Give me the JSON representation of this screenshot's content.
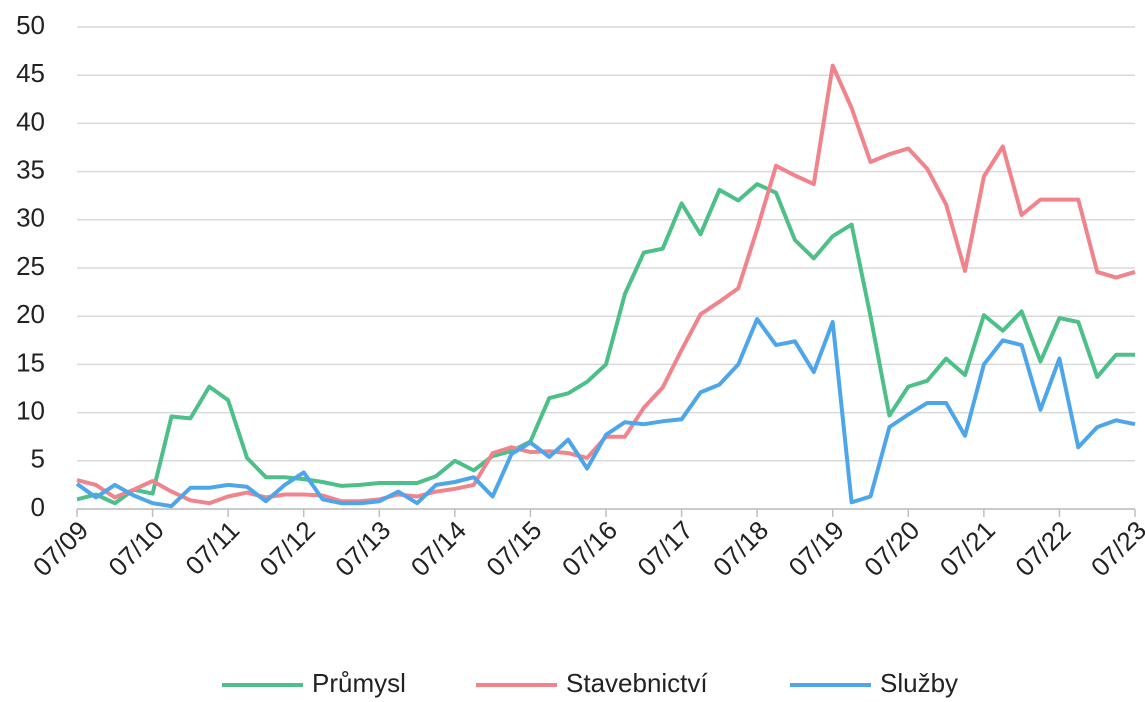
{
  "chart_data": {
    "type": "line",
    "categories": [
      "07/09",
      null,
      null,
      null,
      "07/10",
      null,
      null,
      null,
      "07/11",
      null,
      null,
      null,
      "07/12",
      null,
      null,
      null,
      "07/13",
      null,
      null,
      null,
      "07/14",
      null,
      null,
      null,
      "07/15",
      null,
      null,
      null,
      "07/16",
      null,
      null,
      null,
      "07/17",
      null,
      null,
      null,
      "07/18",
      null,
      null,
      null,
      "07/19",
      null,
      null,
      null,
      "07/20",
      null,
      null,
      null,
      "07/21",
      null,
      null,
      null,
      "07/22",
      null,
      null,
      null,
      "07/23"
    ],
    "series": [
      {
        "name": "Průmysl",
        "color": "#4dbf88",
        "values": [
          1.0,
          1.5,
          0.6,
          2.0,
          1.6,
          9.6,
          9.4,
          12.7,
          11.3,
          5.3,
          3.3,
          3.3,
          3.1,
          2.8,
          2.4,
          2.5,
          2.7,
          2.7,
          2.7,
          3.4,
          5.0,
          4.0,
          5.5,
          6.0,
          7.0,
          11.5,
          12.0,
          13.2,
          15.0,
          22.3,
          26.6,
          27.0,
          31.7,
          28.5,
          33.1,
          32.0,
          33.7,
          32.8,
          27.9,
          26.0,
          28.3,
          29.5,
          20.0,
          9.7,
          12.7,
          13.3,
          15.6,
          13.9,
          20.1,
          18.5,
          20.5,
          15.3,
          19.8,
          19.4,
          13.7,
          16.0,
          16.0
        ]
      },
      {
        "name": "Stavebnictví",
        "color": "#f0838b",
        "values": [
          3.0,
          2.5,
          1.2,
          2.0,
          2.9,
          1.8,
          0.9,
          0.6,
          1.3,
          1.7,
          1.2,
          1.5,
          1.5,
          1.4,
          0.8,
          0.8,
          1.0,
          1.5,
          1.3,
          1.8,
          2.1,
          2.5,
          5.8,
          6.4,
          5.9,
          6.0,
          5.8,
          5.3,
          7.5,
          7.5,
          10.5,
          12.6,
          16.5,
          20.2,
          21.5,
          22.9,
          29.0,
          35.6,
          34.6,
          33.7,
          46.0,
          41.6,
          36.0,
          36.8,
          37.4,
          35.3,
          31.6,
          24.7,
          34.5,
          37.6,
          30.5,
          32.1,
          32.1,
          32.1,
          24.6,
          24.0,
          24.6
        ]
      },
      {
        "name": "Služby",
        "color": "#4ea6ea",
        "values": [
          2.6,
          1.2,
          2.5,
          1.4,
          0.6,
          0.3,
          2.2,
          2.2,
          2.5,
          2.3,
          0.8,
          2.5,
          3.8,
          1.0,
          0.6,
          0.6,
          0.8,
          1.8,
          0.6,
          2.5,
          2.8,
          3.3,
          1.3,
          5.7,
          6.9,
          5.4,
          7.2,
          4.2,
          7.7,
          9.0,
          8.8,
          9.1,
          9.3,
          12.1,
          12.9,
          15.0,
          19.7,
          17.0,
          17.4,
          14.2,
          19.4,
          0.7,
          1.3,
          8.5,
          9.8,
          11.0,
          11.0,
          7.6,
          15.0,
          17.5,
          17.0,
          10.3,
          15.6,
          6.4,
          8.5,
          9.2,
          8.8
        ]
      }
    ],
    "ylim": [
      0,
      50
    ],
    "yticks": [
      0,
      5,
      10,
      15,
      20,
      25,
      30,
      35,
      40,
      45,
      50
    ],
    "grid": true,
    "legend": "bottom"
  }
}
